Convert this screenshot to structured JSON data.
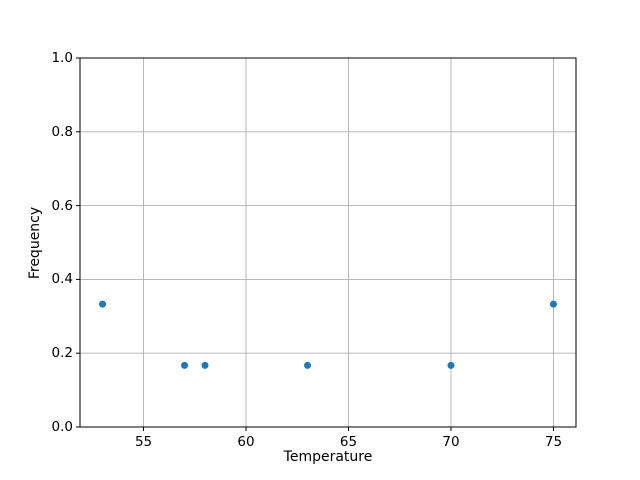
{
  "chart_data": {
    "type": "scatter",
    "title": "",
    "xlabel": "Temperature",
    "ylabel": "Frequency",
    "xlim": [
      51.9,
      76.1
    ],
    "ylim": [
      0.0,
      1.0
    ],
    "xticks": [
      55,
      60,
      65,
      70,
      75
    ],
    "xtick_labels": [
      "55",
      "60",
      "65",
      "70",
      "75"
    ],
    "yticks": [
      0.0,
      0.2,
      0.4,
      0.6,
      0.8,
      1.0
    ],
    "ytick_labels": [
      "0.0",
      "0.2",
      "0.4",
      "0.6",
      "0.8",
      "1.0"
    ],
    "grid": true,
    "legend": "none",
    "series": [
      {
        "name": "frequency-points",
        "marker": "circle",
        "points": [
          {
            "x": 53,
            "y": 0.333
          },
          {
            "x": 57,
            "y": 0.167
          },
          {
            "x": 58,
            "y": 0.167
          },
          {
            "x": 63,
            "y": 0.167
          },
          {
            "x": 70,
            "y": 0.167
          },
          {
            "x": 75,
            "y": 0.333
          }
        ]
      }
    ],
    "colors": {
      "marker": "#1f77b4",
      "grid": "#b0b0b0",
      "spine": "#000000",
      "text": "#000000",
      "background": "#ffffff"
    }
  }
}
